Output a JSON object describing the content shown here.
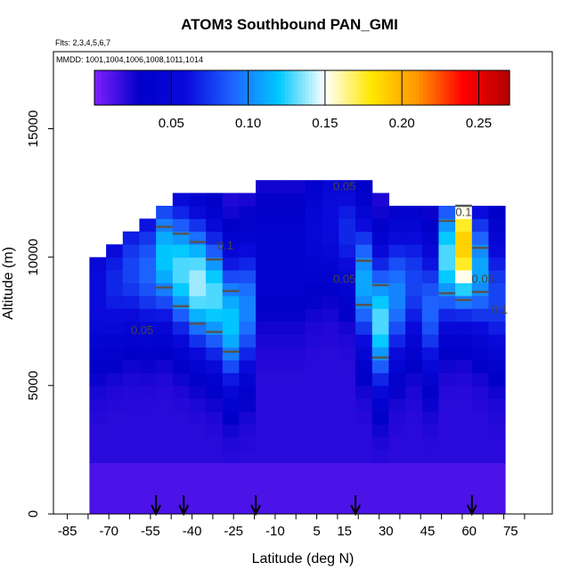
{
  "chart_data": {
    "type": "heatmap",
    "title": "ATOM3 Southbound PAN_GMI",
    "subtitle_flights": "Flts: 2,3,4,5,6,7",
    "subtitle_dates": "MMDD: 1001,1004,1006,1008,1011,1014",
    "xlabel": "Latitude (deg N)",
    "ylabel": "Altitude (m)",
    "xlim": [
      -90,
      90
    ],
    "ylim": [
      0,
      18000
    ],
    "x_ticks": [
      -85,
      -70,
      -55,
      -40,
      -25,
      -10,
      5,
      15,
      30,
      45,
      60,
      75
    ],
    "y_ticks": [
      0,
      5000,
      10000,
      15000
    ],
    "colorbar": {
      "range": [
        0.0,
        0.27
      ],
      "ticks": [
        0.05,
        0.1,
        0.15,
        0.2,
        0.25
      ],
      "tick_labels": [
        "0.05",
        "0.10",
        "0.15",
        "0.20",
        "0.25"
      ],
      "colors": [
        "#7f1fff",
        "#0000c8",
        "#0a0adc",
        "#1e64ff",
        "#00c8ff",
        "#ffffff",
        "#ffe800",
        "#ff9600",
        "#ff0000",
        "#b40000"
      ]
    },
    "contour_labels": [
      "0.1",
      "0.05",
      "0.05",
      "0.05",
      "0.1",
      "0.05",
      "0.1"
    ],
    "flight_markers_lat": [
      -53,
      -43,
      -17,
      19,
      61
    ],
    "profiles": [
      {
        "lat": -74,
        "top": 10000,
        "peak": 0.06,
        "peak_alt": 8500
      },
      {
        "lat": -68,
        "top": 10500,
        "peak": 0.07,
        "peak_alt": 9000
      },
      {
        "lat": -62,
        "top": 11000,
        "peak": 0.08,
        "peak_alt": 9500
      },
      {
        "lat": -56,
        "top": 11500,
        "peak": 0.09,
        "peak_alt": 9500
      },
      {
        "lat": -50,
        "top": 12000,
        "peak": 0.12,
        "peak_alt": 10000
      },
      {
        "lat": -44,
        "top": 12500,
        "peak": 0.13,
        "peak_alt": 9500
      },
      {
        "lat": -38,
        "top": 12500,
        "peak": 0.14,
        "peak_alt": 9000
      },
      {
        "lat": -32,
        "top": 12500,
        "peak": 0.13,
        "peak_alt": 8500
      },
      {
        "lat": -26,
        "top": 12500,
        "peak": 0.12,
        "peak_alt": 7500
      },
      {
        "lat": -20,
        "top": 12500,
        "peak": 0.1,
        "peak_alt": 8000
      },
      {
        "lat": -14,
        "top": 13000,
        "peak": 0.04,
        "peak_alt": 10000
      },
      {
        "lat": -8,
        "top": 13000,
        "peak": 0.04,
        "peak_alt": 10000
      },
      {
        "lat": -2,
        "top": 13000,
        "peak": 0.04,
        "peak_alt": 10000
      },
      {
        "lat": 4,
        "top": 13000,
        "peak": 0.05,
        "peak_alt": 11000
      },
      {
        "lat": 10,
        "top": 13000,
        "peak": 0.06,
        "peak_alt": 11500
      },
      {
        "lat": 16,
        "top": 13000,
        "peak": 0.07,
        "peak_alt": 11000
      },
      {
        "lat": 22,
        "top": 13000,
        "peak": 0.11,
        "peak_alt": 9000
      },
      {
        "lat": 28,
        "top": 12500,
        "peak": 0.13,
        "peak_alt": 7500
      },
      {
        "lat": 34,
        "top": 12000,
        "peak": 0.1,
        "peak_alt": 8500
      },
      {
        "lat": 40,
        "top": 12000,
        "peak": 0.08,
        "peak_alt": 9000
      },
      {
        "lat": 46,
        "top": 12000,
        "peak": 0.09,
        "peak_alt": 8000
      },
      {
        "lat": 52,
        "top": 12000,
        "peak": 0.13,
        "peak_alt": 10000
      },
      {
        "lat": 58,
        "top": 12000,
        "peak": 0.19,
        "peak_alt": 10500
      },
      {
        "lat": 64,
        "top": 12000,
        "peak": 0.11,
        "peak_alt": 9500
      },
      {
        "lat": 70,
        "top": 12000,
        "peak": 0.08,
        "peak_alt": 8500
      }
    ]
  }
}
